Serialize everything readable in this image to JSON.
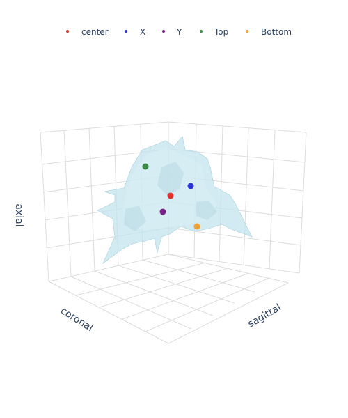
{
  "chart_data": {
    "type": "scatter3d",
    "axes": {
      "x": {
        "label": "coronal"
      },
      "y": {
        "label": "sagittal"
      },
      "z": {
        "label": "axial"
      }
    },
    "grid": true,
    "legend_placement": "top",
    "surface": {
      "color": "#c3e3ec"
    },
    "series": [
      {
        "name": "center",
        "color": "#e5322d"
      },
      {
        "name": "X",
        "color": "#2a35d6"
      },
      {
        "name": "Y",
        "color": "#7b2289"
      },
      {
        "name": "Top",
        "color": "#3b8a46"
      },
      {
        "name": "Bottom",
        "color": "#f0a030"
      }
    ]
  }
}
